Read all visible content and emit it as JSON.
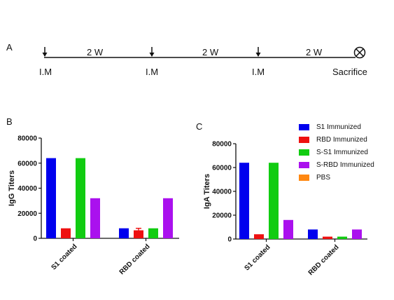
{
  "panels": {
    "a": "A",
    "b": "B",
    "c": "C"
  },
  "timeline": {
    "interval_label": "2 W",
    "injection_label": "I.M",
    "end_label": "Sacrifice",
    "end_icon": "circled-x-icon",
    "arrow_icon": "down-arrow-icon"
  },
  "colors": {
    "s1": "#0000ee",
    "rbd": "#ee1111",
    "ss1": "#11cc11",
    "srbd": "#aa11ee",
    "pbs": "#ff8811"
  },
  "legend": [
    {
      "name": "S1 Immunized",
      "color": "#0000ee"
    },
    {
      "name": "RBD Immunized",
      "color": "#ee1111"
    },
    {
      "name": "S-S1 Immunized",
      "color": "#11cc11"
    },
    {
      "name": "S-RBD Immunized",
      "color": "#aa11ee"
    },
    {
      "name": "PBS",
      "color": "#ff8811"
    }
  ],
  "chart_data": [
    {
      "type": "bar",
      "panel": "B",
      "ylabel": "IgG Titers",
      "ylim": [
        0,
        80000
      ],
      "yticks": [
        "0",
        "20000",
        "40000",
        "60000",
        "80000"
      ],
      "categories": [
        "S1 coated",
        "RBD coated"
      ],
      "series": [
        {
          "name": "S1 Immunized",
          "values": [
            64000,
            8000
          ]
        },
        {
          "name": "RBD Immunized",
          "values": [
            8000,
            6400
          ]
        },
        {
          "name": "S-S1 Immunized",
          "values": [
            64000,
            8000
          ]
        },
        {
          "name": "S-RBD Immunized",
          "values": [
            32000,
            32000
          ]
        }
      ],
      "error_bars": {
        "series": "RBD Immunized",
        "category": "RBD coated",
        "value": 1600
      }
    },
    {
      "type": "bar",
      "panel": "C",
      "ylabel": "IgA Titers",
      "ylim": [
        0,
        80000
      ],
      "yticks": [
        "0",
        "20000",
        "40000",
        "60000",
        "80000"
      ],
      "categories": [
        "S1 coated",
        "RBD coated"
      ],
      "series": [
        {
          "name": "S1 Immunized",
          "values": [
            64000,
            8000
          ]
        },
        {
          "name": "RBD Immunized",
          "values": [
            4000,
            2000
          ]
        },
        {
          "name": "S-S1 Immunized",
          "values": [
            64000,
            2000
          ]
        },
        {
          "name": "S-RBD Immunized",
          "values": [
            16000,
            8000
          ]
        }
      ]
    }
  ]
}
